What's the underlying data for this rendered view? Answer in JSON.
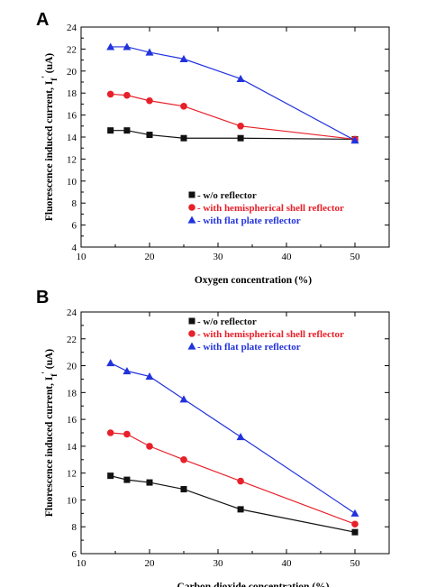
{
  "figure": {
    "colors": {
      "w/o reflector": "#111111",
      "with hemispherical shell reflector": "#e8202a",
      "with flat plate reflector": "#2233dd"
    }
  },
  "chart_data": [
    {
      "panel": "A",
      "type": "line",
      "xlabel": "Oxygen concentration  (%)",
      "ylabel": "Fluorescence induced current,  I",
      "ylabel_sub": "f",
      "ylabel_sup": "'",
      "ylabel_unit": " (uA)",
      "xlim": [
        10,
        55
      ],
      "ylim": [
        4,
        24
      ],
      "xticks": [
        10,
        20,
        30,
        40,
        50
      ],
      "yticks": [
        4,
        6,
        8,
        10,
        12,
        14,
        16,
        18,
        20,
        22,
        24
      ],
      "x": [
        14.3,
        16.7,
        20,
        25,
        33.3,
        50
      ],
      "legend_position": "lower-center",
      "series": [
        {
          "name": "w/o reflector",
          "legend_label": "- w/o  reflector",
          "marker": "square",
          "color": "#111111",
          "values": [
            14.6,
            14.6,
            14.2,
            13.9,
            13.9,
            13.8
          ]
        },
        {
          "name": "with hemispherical shell reflector",
          "legend_label": "- with  hemispherical  shell reflector",
          "marker": "circle",
          "color": "#e8202a",
          "values": [
            17.9,
            17.8,
            17.3,
            16.8,
            15.0,
            13.8
          ]
        },
        {
          "name": "with flat plate reflector",
          "legend_label": "- with  flat plate reflector",
          "marker": "triangle",
          "color": "#2233dd",
          "values": [
            22.2,
            22.2,
            21.7,
            21.1,
            19.3,
            13.7
          ]
        }
      ]
    },
    {
      "panel": "B",
      "type": "line",
      "xlabel": "Carbon dioxide concentration  (%)",
      "ylabel": "Fluorescence induced current,  I",
      "ylabel_sub": "f",
      "ylabel_sup": "'",
      "ylabel_unit": " (uA)",
      "xlim": [
        10,
        55
      ],
      "ylim": [
        6,
        24
      ],
      "xticks": [
        10,
        20,
        30,
        40,
        50
      ],
      "yticks": [
        6,
        8,
        10,
        12,
        14,
        16,
        18,
        20,
        22,
        24
      ],
      "x": [
        14.3,
        16.7,
        20,
        25,
        33.3,
        50
      ],
      "legend_position": "top-center",
      "series": [
        {
          "name": "w/o reflector",
          "legend_label": "- w/o  reflector",
          "marker": "square",
          "color": "#111111",
          "values": [
            11.8,
            11.5,
            11.3,
            10.8,
            9.3,
            7.6
          ]
        },
        {
          "name": "with hemispherical shell reflector",
          "legend_label": "- with  hemispherical  shell reflector",
          "marker": "circle",
          "color": "#e8202a",
          "values": [
            15.0,
            14.9,
            14.0,
            13.0,
            11.4,
            8.2
          ]
        },
        {
          "name": "with flat plate reflector",
          "legend_label": "- with  flat plate reflector",
          "marker": "triangle",
          "color": "#2233dd",
          "values": [
            20.2,
            19.6,
            19.2,
            17.5,
            14.7,
            9.0
          ]
        }
      ]
    }
  ]
}
